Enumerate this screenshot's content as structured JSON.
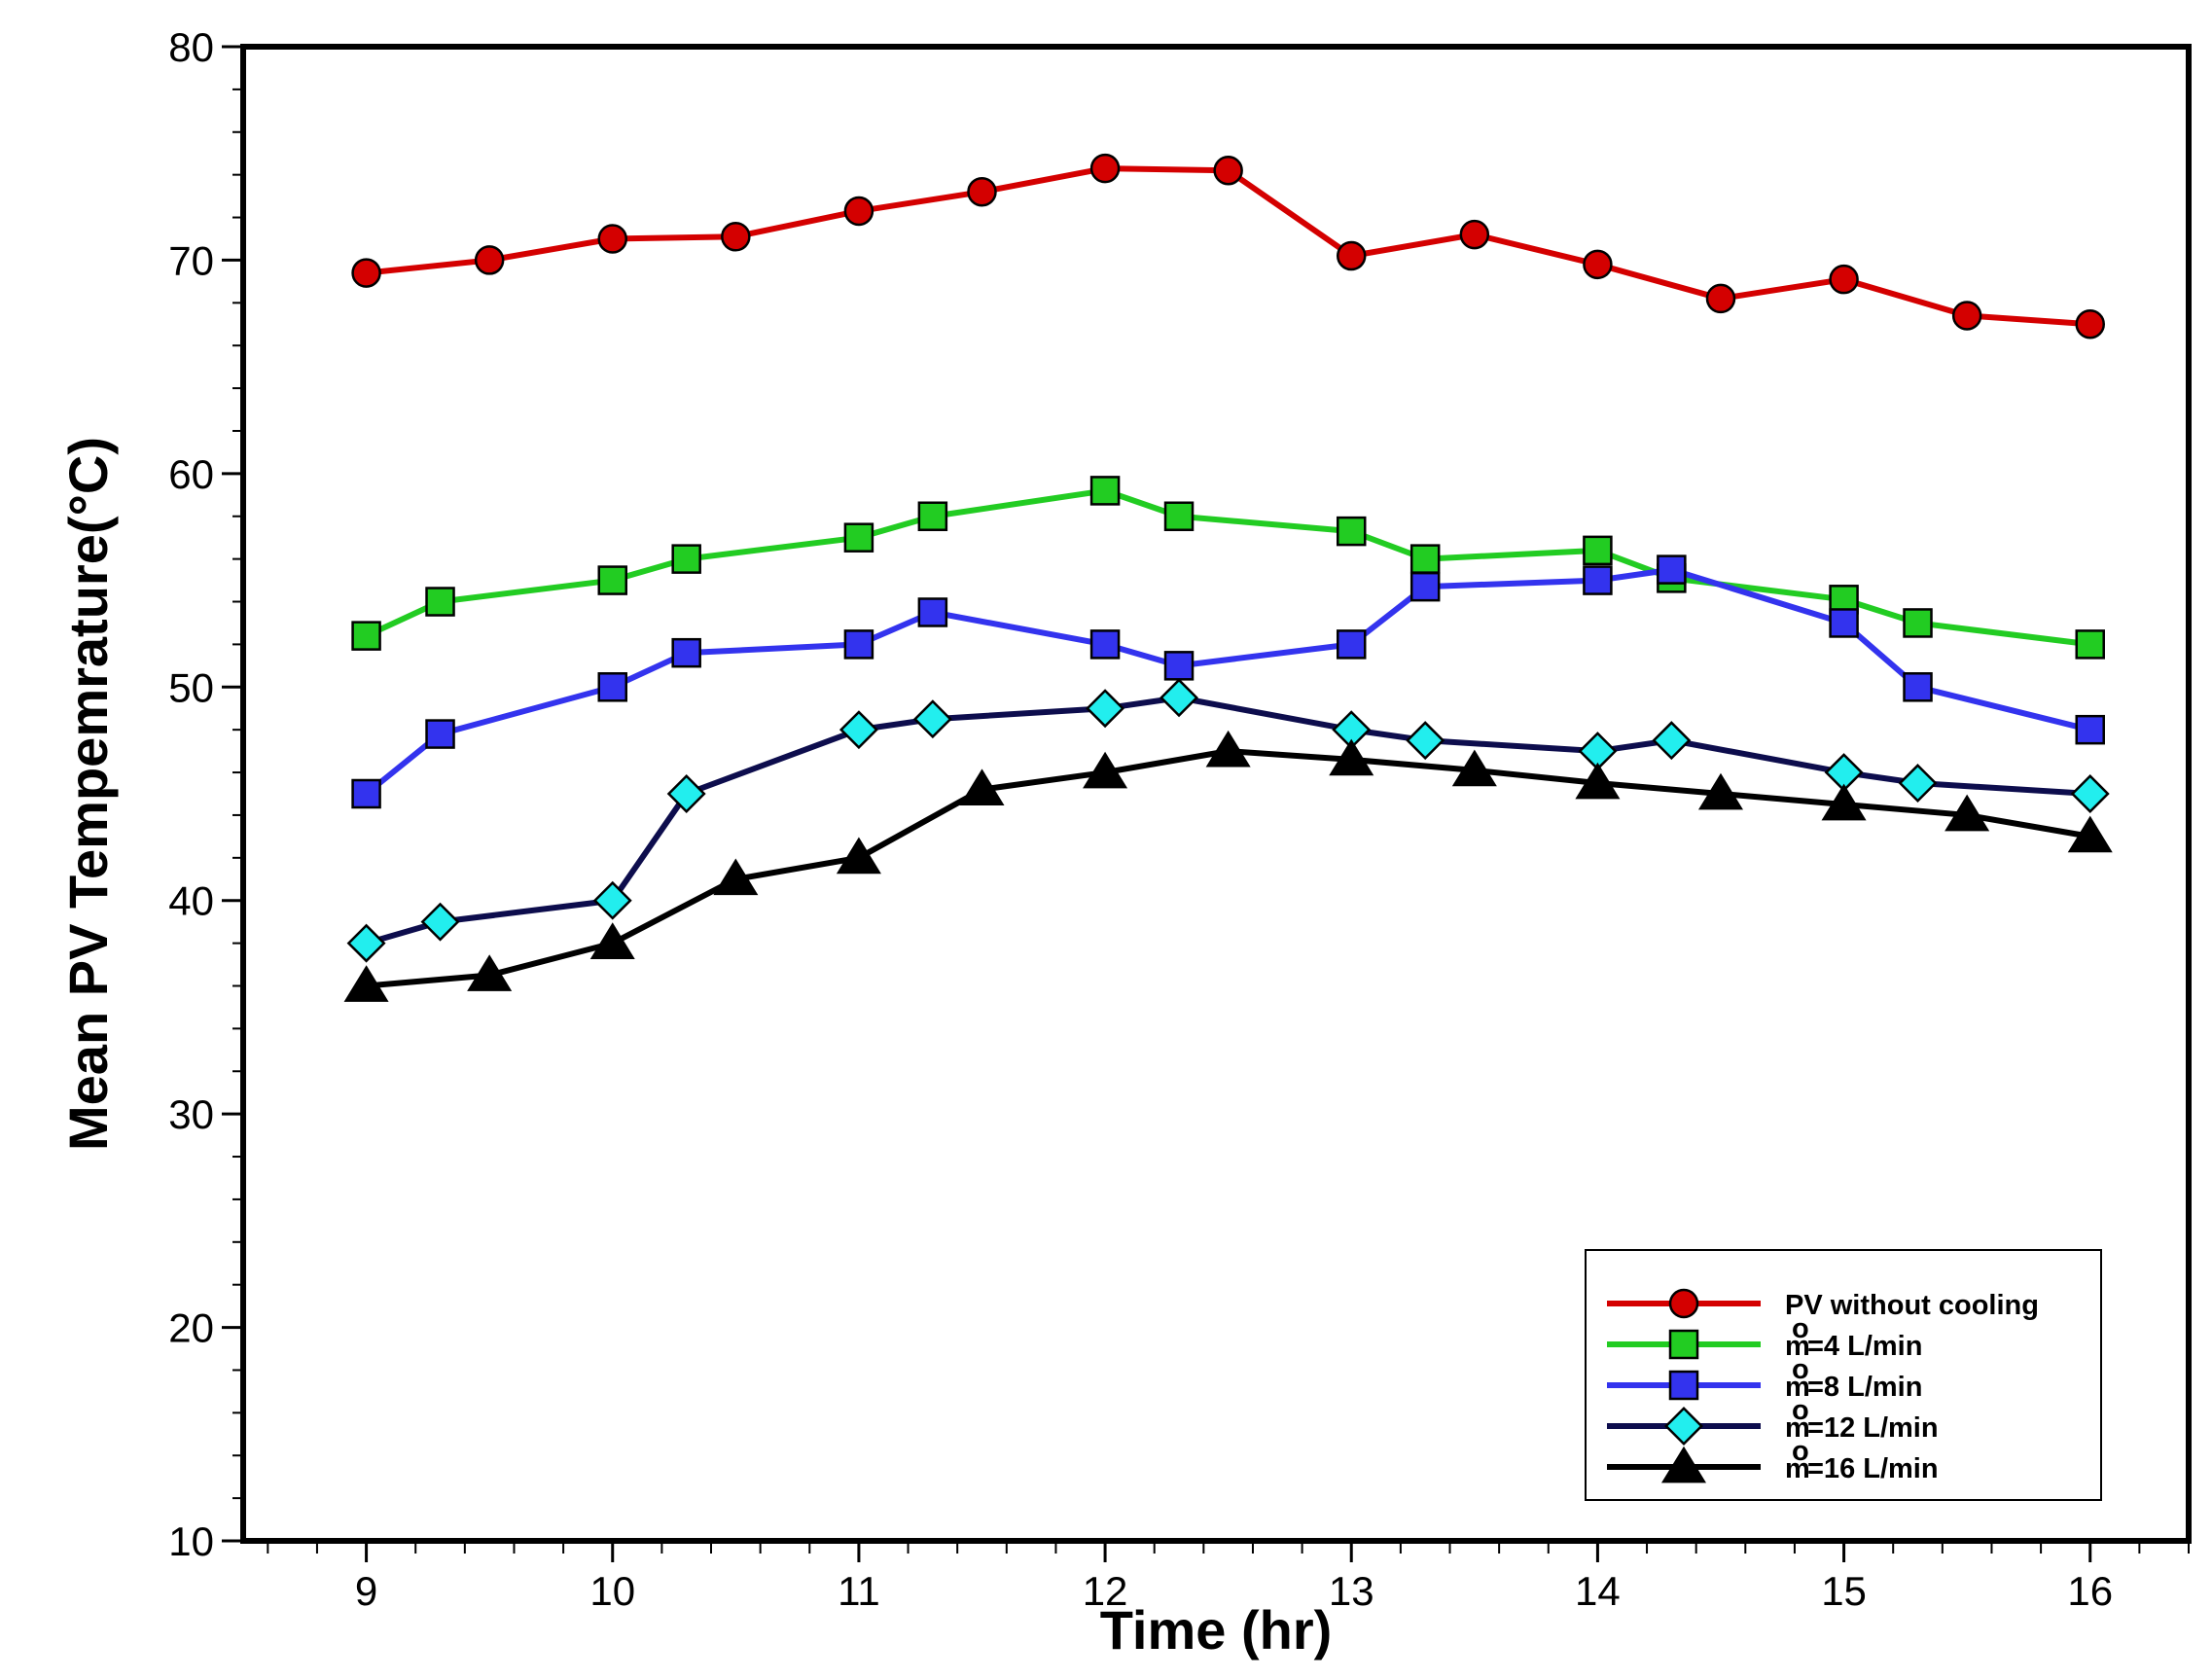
{
  "chart_data": {
    "type": "line",
    "title": "",
    "xlabel": "Time (hr)",
    "ylabel": "Mean PV Tempemrature(°C)",
    "xlim": [
      8.5,
      16.4
    ],
    "ylim": [
      10,
      80
    ],
    "x_ticks": [
      9,
      10,
      11,
      12,
      13,
      14,
      15,
      16
    ],
    "y_ticks": [
      10,
      20,
      30,
      40,
      50,
      60,
      70,
      80
    ],
    "grid": false,
    "legend_position": "bottom-right",
    "series": [
      {
        "name": "PV without cooling",
        "color": "#d40000",
        "marker": "circle",
        "x": [
          9,
          9.5,
          10,
          10.5,
          11,
          11.5,
          12,
          12.5,
          13,
          13.5,
          14,
          14.5,
          15,
          15.5,
          16
        ],
        "y": [
          69.4,
          70.0,
          71.0,
          71.1,
          72.3,
          73.2,
          74.3,
          74.2,
          70.2,
          71.2,
          69.8,
          68.2,
          69.1,
          67.4,
          67.0
        ]
      },
      {
        "name": "=4 L/min",
        "prefix": "m",
        "color": "#22cc22",
        "marker": "square",
        "x": [
          9,
          9.3,
          10,
          10.3,
          11,
          11.3,
          12,
          12.3,
          13,
          13.3,
          14,
          14.3,
          15,
          15.3,
          16
        ],
        "y": [
          52.4,
          54.0,
          55.0,
          56.0,
          57.0,
          58.0,
          59.2,
          58.0,
          57.3,
          56.0,
          56.4,
          55.1,
          54.1,
          53.0,
          52.0
        ]
      },
      {
        "name": "=8 L/min",
        "prefix": "m",
        "color": "#3333ee",
        "marker": "square",
        "x": [
          9,
          9.3,
          10,
          10.3,
          11,
          11.3,
          12,
          12.3,
          13,
          13.3,
          14,
          14.3,
          15,
          15.3,
          16
        ],
        "y": [
          45.0,
          47.8,
          50.0,
          51.6,
          52.0,
          53.5,
          52.0,
          51.0,
          52.0,
          54.7,
          55.0,
          55.5,
          53.0,
          50.0,
          48.0
        ]
      },
      {
        "name": "=12 L/min",
        "prefix": "m",
        "color": "#0d0d4d",
        "marker": "diamond",
        "marker_color": "#22eeee",
        "x": [
          9,
          9.3,
          10,
          10.3,
          11,
          11.3,
          12,
          12.3,
          13,
          13.3,
          14,
          14.3,
          15,
          15.3,
          16
        ],
        "y": [
          38.0,
          39.0,
          40.0,
          45.0,
          48.0,
          48.5,
          49.0,
          49.5,
          48.0,
          47.5,
          47.0,
          47.5,
          46.0,
          45.5,
          45.0
        ]
      },
      {
        "name": "=16 L/min",
        "prefix": "m",
        "color": "#000000",
        "marker": "triangle",
        "x": [
          9,
          9.5,
          10,
          10.5,
          11,
          11.5,
          12,
          12.5,
          13,
          13.5,
          14,
          14.5,
          15,
          15.5,
          16
        ],
        "y": [
          36.0,
          36.5,
          38.0,
          41.0,
          42.0,
          45.2,
          46.0,
          47.0,
          46.6,
          46.1,
          45.5,
          45.0,
          44.5,
          44.0,
          43.0
        ]
      }
    ]
  }
}
